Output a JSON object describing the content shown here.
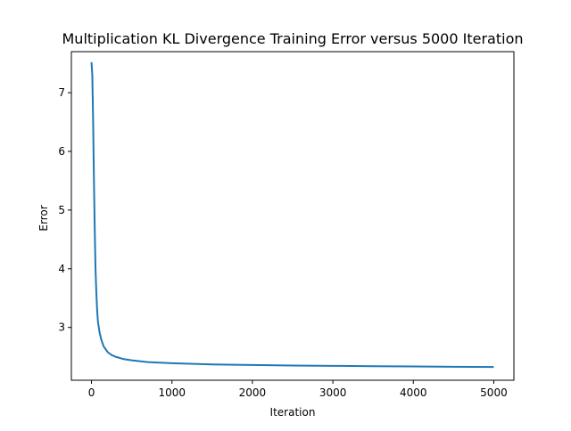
{
  "chart_data": {
    "type": "line",
    "title": "Multiplication KL Divergence Training Error versus 5000 Iteration",
    "xlabel": "Iteration",
    "ylabel": "Error",
    "xlim": [
      -250,
      5250
    ],
    "ylim": [
      2.1,
      7.7
    ],
    "xticks": [
      0,
      1000,
      2000,
      3000,
      4000,
      5000
    ],
    "xtick_labels": [
      "0",
      "1000",
      "2000",
      "3000",
      "4000",
      "5000"
    ],
    "yticks": [
      3,
      4,
      5,
      6,
      7
    ],
    "ytick_labels": [
      "3",
      "4",
      "5",
      "6",
      "7"
    ],
    "grid": false,
    "legend": "none",
    "series": [
      {
        "color": "#1f77b4",
        "x": [
          0,
          10,
          20,
          30,
          40,
          50,
          60,
          70,
          80,
          100,
          120,
          150,
          200,
          250,
          300,
          400,
          500,
          700,
          1000,
          1500,
          2000,
          2500,
          3000,
          3500,
          4000,
          4500,
          5000
        ],
        "y": [
          7.52,
          7.3,
          6.55,
          5.55,
          4.7,
          4.0,
          3.6,
          3.3,
          3.1,
          2.92,
          2.8,
          2.68,
          2.58,
          2.53,
          2.5,
          2.46,
          2.44,
          2.41,
          2.39,
          2.37,
          2.36,
          2.35,
          2.345,
          2.34,
          2.335,
          2.33,
          2.325
        ]
      }
    ]
  }
}
